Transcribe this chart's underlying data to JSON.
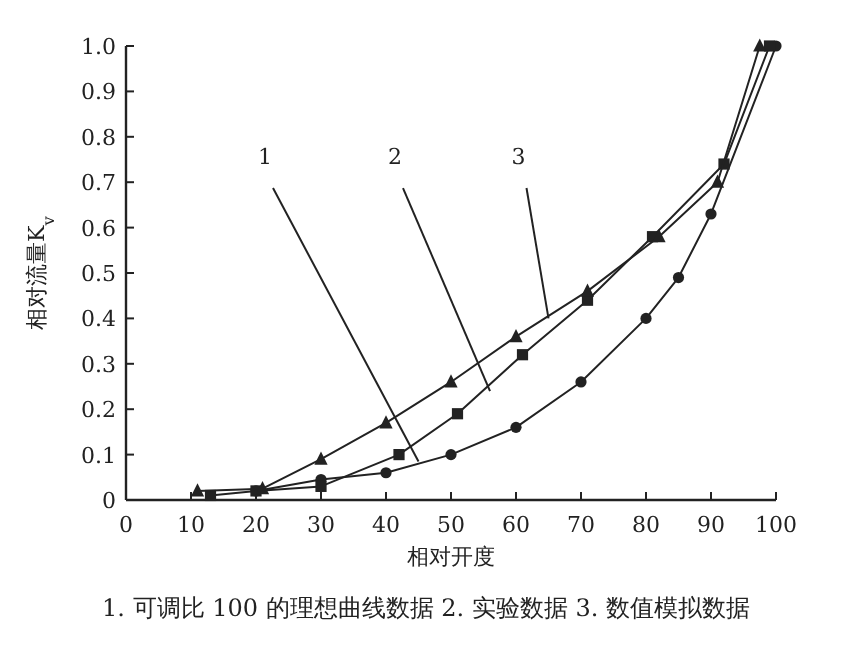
{
  "chart_data": {
    "type": "line",
    "xlabel": "相对开度",
    "ylabel": "相对流量K$_{v}$",
    "xlim": [
      0,
      100
    ],
    "ylim": [
      0,
      1.0
    ],
    "xticks": [
      0,
      10,
      20,
      30,
      40,
      50,
      60,
      70,
      80,
      90,
      100
    ],
    "yticks": [
      0,
      0.1,
      0.2,
      0.3,
      0.4,
      0.5,
      0.6,
      0.7,
      0.8,
      0.9,
      {
        "value": 1,
        "label": "1.0"
      }
    ],
    "series": [
      {
        "color": "#222222",
        "marker": "circle",
        "x": [
          20,
          30,
          40,
          50,
          60,
          70,
          80,
          85,
          90,
          100
        ],
        "values": [
          0.02,
          0.045,
          0.06,
          0.1,
          0.16,
          0.26,
          0.4,
          0.49,
          0.63,
          1.0
        ]
      },
      {
        "color": "#222222",
        "marker": "square",
        "x": [
          13,
          20,
          30,
          42,
          51,
          61,
          71,
          81,
          92,
          99
        ],
        "values": [
          0.01,
          0.02,
          0.03,
          0.1,
          0.19,
          0.32,
          0.44,
          0.58,
          0.74,
          1.0
        ]
      },
      {
        "color": "#222222",
        "marker": "triangle",
        "x": [
          11,
          21,
          30,
          40,
          50,
          60,
          71,
          82,
          91,
          97.5
        ],
        "values": [
          0.02,
          0.025,
          0.09,
          0.17,
          0.26,
          0.36,
          0.46,
          0.58,
          0.7,
          1.0
        ]
      }
    ],
    "annotations": [
      {
        "text": "1",
        "x": 45,
        "y": 0.085
      },
      {
        "text": "2",
        "x": 56,
        "y": 0.24
      },
      {
        "text": "3",
        "x": 65,
        "y": 0.4
      },
      "1. 可调比 100 的理想曲线数据  2. 实验数据  3. 数值模拟数据"
    ]
  }
}
